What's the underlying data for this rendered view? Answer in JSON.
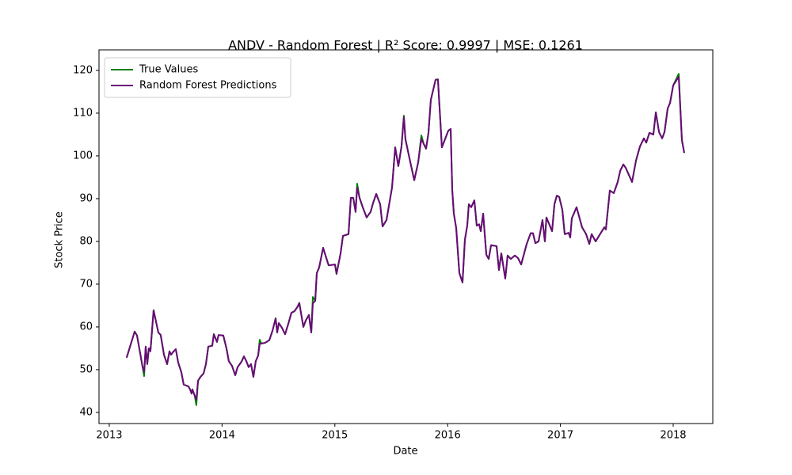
{
  "chart_data": {
    "type": "line",
    "title": "ANDV - Random Forest | R² Score: 0.9997 | MSE: 0.1261",
    "x_label": "Date",
    "y_label": "Stock Price",
    "x": [
      2013.154,
      2013.225,
      2013.246,
      2013.295,
      2013.309,
      2013.323,
      2013.337,
      2013.351,
      2013.365,
      2013.393,
      2013.414,
      2013.435,
      2013.456,
      2013.485,
      2013.513,
      2013.534,
      2013.548,
      2013.562,
      2013.59,
      2013.611,
      2013.639,
      2013.66,
      2013.702,
      2013.716,
      2013.73,
      2013.737,
      2013.758,
      2013.772,
      2013.787,
      2013.808,
      2013.836,
      2013.857,
      2013.878,
      2013.913,
      2013.927,
      2013.955,
      2013.969,
      2014.011,
      2014.039,
      2014.06,
      2014.088,
      2014.117,
      2014.138,
      2014.173,
      2014.194,
      2014.215,
      2014.236,
      2014.257,
      2014.278,
      2014.299,
      2014.32,
      2014.334,
      2014.348,
      2014.383,
      2014.419,
      2014.447,
      2014.475,
      2014.489,
      2014.503,
      2014.531,
      2014.559,
      2014.587,
      2014.615,
      2014.643,
      2014.671,
      2014.685,
      2014.721,
      2014.742,
      2014.77,
      2014.791,
      2014.805,
      2014.826,
      2014.84,
      2014.861,
      2014.896,
      2014.945,
      2015.001,
      2015.015,
      2015.051,
      2015.072,
      2015.121,
      2015.142,
      2015.163,
      2015.184,
      2015.198,
      2015.219,
      2015.247,
      2015.282,
      2015.317,
      2015.338,
      2015.367,
      2015.402,
      2015.423,
      2015.458,
      2015.507,
      2015.535,
      2015.563,
      2015.591,
      2015.612,
      2015.626,
      2015.662,
      2015.704,
      2015.739,
      2015.767,
      2015.788,
      2015.809,
      2015.83,
      2015.851,
      2015.893,
      2015.914,
      2015.949,
      2016.006,
      2016.027,
      2016.041,
      2016.055,
      2016.076,
      2016.104,
      2016.132,
      2016.153,
      2016.174,
      2016.188,
      2016.209,
      2016.237,
      2016.258,
      2016.279,
      2016.294,
      2016.315,
      2016.343,
      2016.364,
      2016.385,
      2016.434,
      2016.455,
      2016.476,
      2016.511,
      2016.532,
      2016.56,
      2016.596,
      2016.624,
      2016.652,
      2016.701,
      2016.736,
      2016.757,
      2016.778,
      2016.806,
      2016.841,
      2016.862,
      2016.876,
      2016.926,
      2016.947,
      2016.968,
      2016.989,
      2017.017,
      2017.038,
      2017.073,
      2017.087,
      2017.101,
      2017.143,
      2017.192,
      2017.228,
      2017.256,
      2017.277,
      2017.312,
      2017.368,
      2017.389,
      2017.403,
      2017.438,
      2017.473,
      2017.508,
      2017.53,
      2017.558,
      2017.579,
      2017.635,
      2017.67,
      2017.705,
      2017.74,
      2017.761,
      2017.789,
      2017.824,
      2017.846,
      2017.874,
      2017.902,
      2017.923,
      2017.951,
      2017.972,
      2018.0,
      2018.049,
      2018.077,
      2018.098
    ],
    "series": [
      {
        "name": "True Values",
        "color": "#008000",
        "values": [
          52.8,
          58.9,
          58,
          50.7,
          48.5,
          55.4,
          51.3,
          55,
          54.3,
          63.9,
          61.3,
          58.7,
          58.1,
          53.5,
          51.3,
          54.3,
          53.5,
          54,
          54.8,
          51.7,
          49.4,
          46.5,
          46.1,
          45.4,
          44.4,
          45.4,
          43.9,
          41.7,
          47.4,
          48.3,
          49.1,
          51.3,
          55.4,
          55.6,
          58.3,
          56.5,
          58.1,
          58,
          55,
          52,
          50.9,
          48.7,
          50.6,
          51.9,
          53.1,
          52,
          50.6,
          51.3,
          48.3,
          52,
          53.3,
          57,
          56.1,
          56.3,
          56.9,
          59.1,
          62,
          58.7,
          60.9,
          59.8,
          58.3,
          60.7,
          63.3,
          63.7,
          64.8,
          65.6,
          60,
          61.5,
          62.8,
          58.7,
          67,
          66.1,
          72.6,
          73.9,
          78.5,
          74.4,
          74.6,
          72.4,
          77.2,
          81.3,
          81.7,
          90.2,
          90.2,
          86.9,
          93.5,
          90.2,
          88,
          85.6,
          86.9,
          88.9,
          91.1,
          88.7,
          83.5,
          85,
          92.6,
          102,
          97.6,
          102.2,
          109.4,
          103.9,
          99.4,
          94.3,
          98.5,
          104.8,
          102.8,
          101.7,
          105.4,
          113.1,
          117.8,
          117.9,
          102,
          105.9,
          106.3,
          92,
          86.5,
          83.1,
          72.6,
          70.4,
          80.4,
          83.7,
          88.7,
          88,
          89.6,
          83.7,
          84,
          82.4,
          86.5,
          76.9,
          75.9,
          79.1,
          78.9,
          73.3,
          77.2,
          71.3,
          76.7,
          75.9,
          76.7,
          76.1,
          74.6,
          79.4,
          81.9,
          81.9,
          79.6,
          80,
          85,
          80,
          85.6,
          82.4,
          88.7,
          90.7,
          90.4,
          87.4,
          81.7,
          82,
          80.9,
          85.4,
          88,
          83.3,
          81.7,
          79.4,
          81.7,
          80,
          82.4,
          83.3,
          82.8,
          91.9,
          91.3,
          93.9,
          96.5,
          98,
          97.2,
          93.9,
          98.9,
          102.2,
          104.1,
          103.1,
          105.4,
          105,
          110.2,
          105.6,
          104.1,
          105.6,
          111.1,
          112.4,
          116.5,
          119.2,
          103.7,
          100.7
        ]
      },
      {
        "name": "Random Forest Predictions",
        "color": "#6a0a78",
        "values": [
          52.8,
          58.9,
          58,
          50.7,
          49.5,
          55.4,
          51.3,
          55,
          54.3,
          63.9,
          61.3,
          58.7,
          58.1,
          53.5,
          51.3,
          54.3,
          53.5,
          54,
          54.8,
          51.7,
          49.4,
          46.5,
          46.1,
          45.4,
          44.4,
          45.4,
          43.9,
          43,
          47.4,
          48.3,
          49.1,
          51.3,
          55.4,
          55.6,
          58.3,
          56.5,
          58.1,
          58,
          55,
          52,
          50.9,
          48.7,
          50.6,
          51.9,
          53.1,
          52,
          50.6,
          51.3,
          48.3,
          52,
          53.3,
          56,
          56.1,
          56.3,
          56.9,
          59.1,
          62,
          58.7,
          60.9,
          59.8,
          58.3,
          60.7,
          63.3,
          63.7,
          64.8,
          65.6,
          60,
          61.5,
          62.8,
          58.7,
          65.5,
          66.1,
          72.6,
          73.9,
          78.5,
          74.4,
          74.6,
          72.4,
          77.2,
          81.3,
          81.7,
          90.2,
          90.2,
          86.9,
          92.6,
          90.2,
          88,
          85.6,
          86.9,
          88.9,
          91.1,
          88.7,
          83.5,
          85,
          92.6,
          102,
          97.6,
          102.2,
          109.1,
          103.9,
          99.4,
          94.3,
          98.5,
          104,
          102.8,
          101.7,
          105.4,
          113.1,
          117.8,
          117.9,
          102,
          105.9,
          106.3,
          92,
          86.5,
          83.1,
          72.6,
          70.4,
          80.4,
          83.7,
          88.7,
          88,
          89.6,
          83.7,
          84,
          82.4,
          86.5,
          76.9,
          75.9,
          79.1,
          78.9,
          73.3,
          77.2,
          71.3,
          76.7,
          75.9,
          76.7,
          76.1,
          74.6,
          79.4,
          81.9,
          81.9,
          79.6,
          80,
          85,
          80,
          85.6,
          82.4,
          88.7,
          90.7,
          90.4,
          87.4,
          81.7,
          82,
          80.9,
          85.4,
          88,
          83.3,
          81.7,
          79.4,
          81.7,
          80,
          82.4,
          83.3,
          82.8,
          91.9,
          91.3,
          93.9,
          96.5,
          98,
          97.2,
          93.9,
          98.9,
          102.2,
          104.1,
          103.1,
          105.4,
          105,
          110.2,
          105.6,
          104.1,
          105.6,
          111.1,
          112.4,
          116.5,
          118.5,
          103.7,
          100.7
        ]
      }
    ],
    "xlim": [
      2012.909,
      2018.351
    ],
    "xticks": [
      2013,
      2014,
      2015,
      2016,
      2017,
      2018
    ],
    "ylim": [
      37.4,
      124.8
    ],
    "yticks": [
      40,
      50,
      60,
      70,
      80,
      90,
      100,
      110,
      120
    ],
    "legend": "upper left"
  }
}
